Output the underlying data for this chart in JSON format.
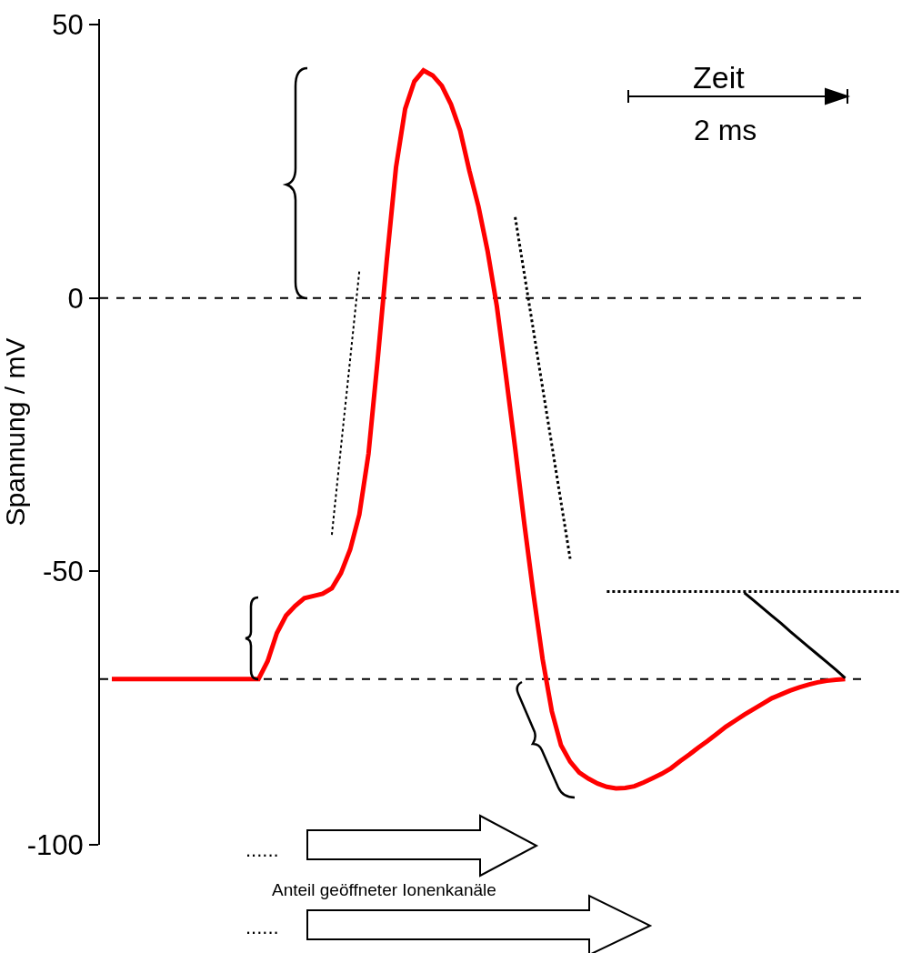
{
  "chart_data": {
    "type": "line",
    "ylabel": "Spannung / mV",
    "ylim": [
      -100,
      51
    ],
    "yticks": [
      50,
      0,
      -50,
      -100
    ],
    "tick_labels": "y",
    "grid": false,
    "legend": false,
    "categories": [
      null,
      null,
      null,
      null,
      null,
      null,
      null,
      null,
      null,
      null,
      null,
      null,
      null,
      null,
      null,
      null,
      null,
      null,
      null,
      null,
      null,
      null,
      null,
      null,
      null,
      null,
      null,
      null,
      null,
      null,
      null,
      null,
      null,
      null,
      null,
      null,
      null,
      null,
      null,
      null,
      null,
      null,
      null,
      null,
      null,
      null,
      null,
      null,
      null,
      null,
      null,
      null,
      null,
      null,
      null,
      null,
      null,
      null,
      null,
      null,
      null,
      null,
      null,
      null,
      null,
      null,
      null,
      null,
      null,
      null,
      null,
      null,
      null,
      null,
      null,
      null,
      null,
      null,
      null,
      null,
      null,
      null,
      null,
      null,
      null,
      null,
      null
    ],
    "series": [
      {
        "color": "#ff0000",
        "line_style": "solid",
        "values": [
          -69.7,
          -69.7,
          -69.7,
          -69.7,
          -69.7,
          -69.7,
          -69.7,
          -69.7,
          -69.7,
          -69.7,
          -69.7,
          -69.7,
          -69.7,
          -69.7,
          -69.7,
          -69.7,
          -69.7,
          -66.4,
          -61.3,
          -58.1,
          -56.3,
          -54.9,
          -54.5,
          -54.1,
          -53.1,
          -50.3,
          -46.0,
          -39.6,
          -28.5,
          -11.3,
          7.0,
          23.9,
          34.6,
          39.6,
          41.6,
          40.7,
          38.8,
          35.4,
          30.6,
          23.3,
          16.7,
          8.5,
          -1.5,
          -14.3,
          -27.5,
          -41.3,
          -54.2,
          -66.1,
          -75.6,
          -81.8,
          -84.8,
          -86.8,
          -87.9,
          -88.8,
          -89.4,
          -89.7,
          -89.6,
          -89.3,
          -88.6,
          -87.8,
          -87.0,
          -86.0,
          -84.7,
          -83.5,
          -82.2,
          -81.0,
          -79.7,
          -78.4,
          -77.3,
          -76.2,
          -75.2,
          -74.2,
          -73.2,
          -72.5,
          -71.8,
          -71.2,
          -70.7,
          -70.3,
          -70.0,
          -69.8,
          -69.7,
          null,
          null,
          null,
          null,
          null,
          null
        ]
      },
      {
        "color": "#000000",
        "line_style": "dotted",
        "values": [
          null,
          null,
          null,
          null,
          null,
          null,
          null,
          null,
          null,
          null,
          null,
          null,
          null,
          null,
          null,
          null,
          null,
          null,
          null,
          null,
          null,
          null,
          null,
          null,
          -43.3,
          -27.2,
          -11.2,
          4.9,
          null,
          null,
          null,
          null,
          null,
          null,
          null,
          null,
          null,
          null,
          null,
          null,
          null,
          null,
          null,
          null,
          null,
          null,
          null,
          null,
          null,
          null,
          null,
          null,
          null,
          null,
          null,
          null,
          null,
          null,
          null,
          null,
          null,
          null,
          null,
          null,
          null,
          null,
          null,
          null,
          null,
          null,
          null,
          null,
          null,
          null,
          null,
          null,
          null,
          null,
          null,
          null,
          null,
          null,
          null,
          null,
          null,
          null,
          null
        ]
      },
      {
        "color": "#000000",
        "line_style": "dotted",
        "values": [
          null,
          null,
          null,
          null,
          null,
          null,
          null,
          null,
          null,
          null,
          null,
          null,
          null,
          null,
          null,
          null,
          null,
          null,
          null,
          null,
          null,
          null,
          null,
          null,
          null,
          null,
          null,
          null,
          null,
          null,
          null,
          null,
          null,
          null,
          null,
          null,
          null,
          null,
          null,
          null,
          null,
          null,
          null,
          null,
          14.8,
          4.4,
          -6.0,
          -16.5,
          -26.9,
          -37.3,
          -47.7,
          null,
          null,
          null,
          null,
          null,
          null,
          null,
          null,
          null,
          null,
          null,
          null,
          null,
          null,
          null,
          null,
          null,
          null,
          null,
          null,
          null,
          null,
          null,
          null,
          null,
          null,
          null,
          null,
          null,
          null,
          null,
          null,
          null,
          null,
          null,
          null
        ]
      },
      {
        "color": "#000000",
        "line_style": "dotted",
        "values": [
          null,
          null,
          null,
          null,
          null,
          null,
          null,
          null,
          null,
          null,
          null,
          null,
          null,
          null,
          null,
          null,
          null,
          null,
          null,
          null,
          null,
          null,
          null,
          null,
          null,
          null,
          null,
          null,
          null,
          null,
          null,
          null,
          null,
          null,
          null,
          null,
          null,
          null,
          null,
          null,
          null,
          null,
          null,
          null,
          null,
          null,
          null,
          null,
          null,
          null,
          null,
          null,
          null,
          null,
          -53.7,
          -53.7,
          -53.7,
          -53.7,
          -53.7,
          -53.7,
          -53.7,
          -53.7,
          -53.7,
          -53.7,
          -53.7,
          -53.7,
          -53.7,
          -53.7,
          -53.7,
          -53.7,
          -53.7,
          -53.7,
          -53.7,
          -53.7,
          -53.7,
          -53.7,
          -53.7,
          -53.7,
          -53.7,
          -53.7,
          -53.7,
          -53.7,
          -53.7,
          -53.7,
          -53.7,
          -53.7,
          -53.7
        ]
      },
      {
        "color": "#000000",
        "line_style": "solid",
        "values": [
          null,
          null,
          null,
          null,
          null,
          null,
          null,
          null,
          null,
          null,
          null,
          null,
          null,
          null,
          null,
          null,
          null,
          null,
          null,
          null,
          null,
          null,
          null,
          null,
          null,
          null,
          null,
          null,
          null,
          null,
          null,
          null,
          null,
          null,
          null,
          null,
          null,
          null,
          null,
          null,
          null,
          null,
          null,
          null,
          null,
          null,
          null,
          null,
          null,
          null,
          null,
          null,
          null,
          null,
          null,
          null,
          null,
          null,
          null,
          null,
          null,
          null,
          null,
          null,
          null,
          null,
          null,
          null,
          null,
          -53.9,
          -55.3,
          -56.7,
          -58.1,
          -59.5,
          -61.0,
          -62.4,
          -63.8,
          -65.2,
          -66.6,
          -68.0,
          -69.5,
          null,
          null,
          null,
          null,
          null,
          null
        ]
      }
    ],
    "ref_lines": [
      {
        "axis": "y",
        "value": 0,
        "color": "#000000",
        "line_style": "dashed"
      },
      {
        "axis": "y",
        "value": -69.7,
        "color": "#000000",
        "line_style": "dashed"
      }
    ],
    "annotations": [
      "Zeit",
      "2 ms",
      "Anteil geöffneter Ionenkanäle",
      "......",
      "......"
    ]
  }
}
